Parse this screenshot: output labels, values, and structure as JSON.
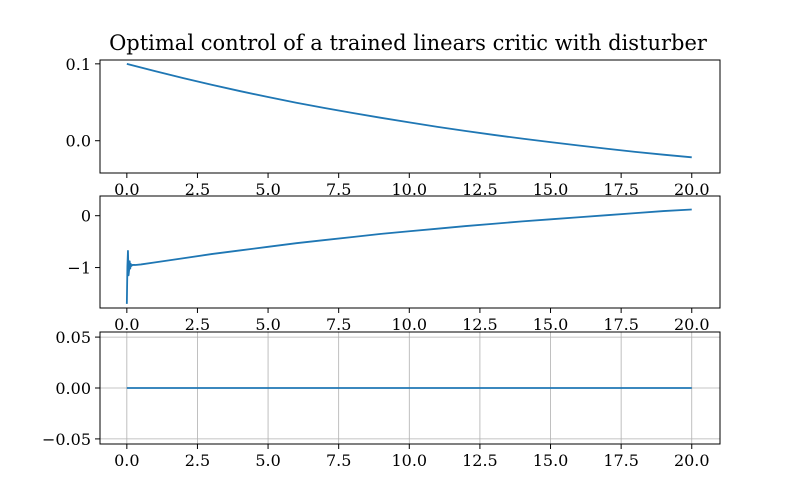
{
  "title": "Optimal control of a trained linears critic with disturber",
  "chart_data": [
    {
      "type": "line",
      "title": "Optimal control of a trained linears critic with disturber",
      "xlim": [
        -0.95,
        21.0
      ],
      "ylim": [
        -0.042,
        0.105
      ],
      "xticks": [
        0.0,
        2.5,
        5.0,
        7.5,
        10.0,
        12.5,
        15.0,
        17.5,
        20.0
      ],
      "xtick_labels": [
        "0.0",
        "2.5",
        "5.0",
        "7.5",
        "10.0",
        "12.5",
        "15.0",
        "17.5",
        "20.0"
      ],
      "yticks": [
        0.1,
        0.0
      ],
      "ytick_labels": [
        "0.1",
        "0.0"
      ],
      "grid": false,
      "color": "#1f77b4",
      "series": [
        {
          "x": [
            0,
            1,
            2,
            3,
            4,
            5,
            6,
            7,
            8,
            9,
            10,
            11,
            12,
            13,
            14,
            15,
            16,
            17,
            18,
            19,
            20
          ],
          "values": [
            0.1,
            0.0905,
            0.0814,
            0.0728,
            0.0646,
            0.0568,
            0.0494,
            0.0425,
            0.036,
            0.0298,
            0.0238,
            0.018,
            0.0126,
            0.0075,
            0.0027,
            -0.0018,
            -0.0062,
            -0.0105,
            -0.0145,
            -0.0182,
            -0.0216
          ]
        }
      ]
    },
    {
      "type": "line",
      "xlim": [
        -0.95,
        21.0
      ],
      "ylim": [
        -1.78,
        0.38
      ],
      "xticks": [
        0.0,
        2.5,
        5.0,
        7.5,
        10.0,
        12.5,
        15.0,
        17.5,
        20.0
      ],
      "xtick_labels": [
        "0.0",
        "2.5",
        "5.0",
        "7.5",
        "10.0",
        "12.5",
        "15.0",
        "17.5",
        "20.0"
      ],
      "yticks": [
        0,
        -1
      ],
      "ytick_labels": [
        "0",
        "−1"
      ],
      "grid": false,
      "color": "#1f77b4",
      "series": [
        {
          "x": [
            0,
            0.02,
            0.04,
            0.06,
            0.08,
            0.1,
            0.12,
            0.14,
            0.16,
            0.2,
            0.3,
            0.5,
            1,
            2,
            3,
            4,
            5,
            6,
            7,
            8,
            9,
            10,
            11,
            12,
            13,
            14,
            15,
            16,
            17,
            18,
            19,
            20
          ],
          "values": [
            -1.7,
            -0.98,
            -0.68,
            -1.15,
            -1.05,
            -0.88,
            -1.02,
            -0.93,
            -0.97,
            -0.95,
            -0.95,
            -0.94,
            -0.9,
            -0.82,
            -0.74,
            -0.67,
            -0.6,
            -0.53,
            -0.47,
            -0.41,
            -0.35,
            -0.3,
            -0.25,
            -0.2,
            -0.155,
            -0.11,
            -0.07,
            -0.03,
            0.01,
            0.05,
            0.09,
            0.12
          ]
        }
      ]
    },
    {
      "type": "line",
      "xlim": [
        -0.95,
        21.0
      ],
      "ylim": [
        -0.055,
        0.055
      ],
      "xticks": [
        0.0,
        2.5,
        5.0,
        7.5,
        10.0,
        12.5,
        15.0,
        17.5,
        20.0
      ],
      "xtick_labels": [
        "0.0",
        "2.5",
        "5.0",
        "7.5",
        "10.0",
        "12.5",
        "15.0",
        "17.5",
        "20.0"
      ],
      "yticks": [
        0.05,
        0.0,
        -0.05
      ],
      "ytick_labels": [
        "0.05",
        "0.00",
        "−0.05"
      ],
      "grid": true,
      "color": "#1f77b4",
      "series": [
        {
          "x": [
            0,
            20
          ],
          "values": [
            0.0,
            0.0
          ]
        }
      ]
    }
  ]
}
